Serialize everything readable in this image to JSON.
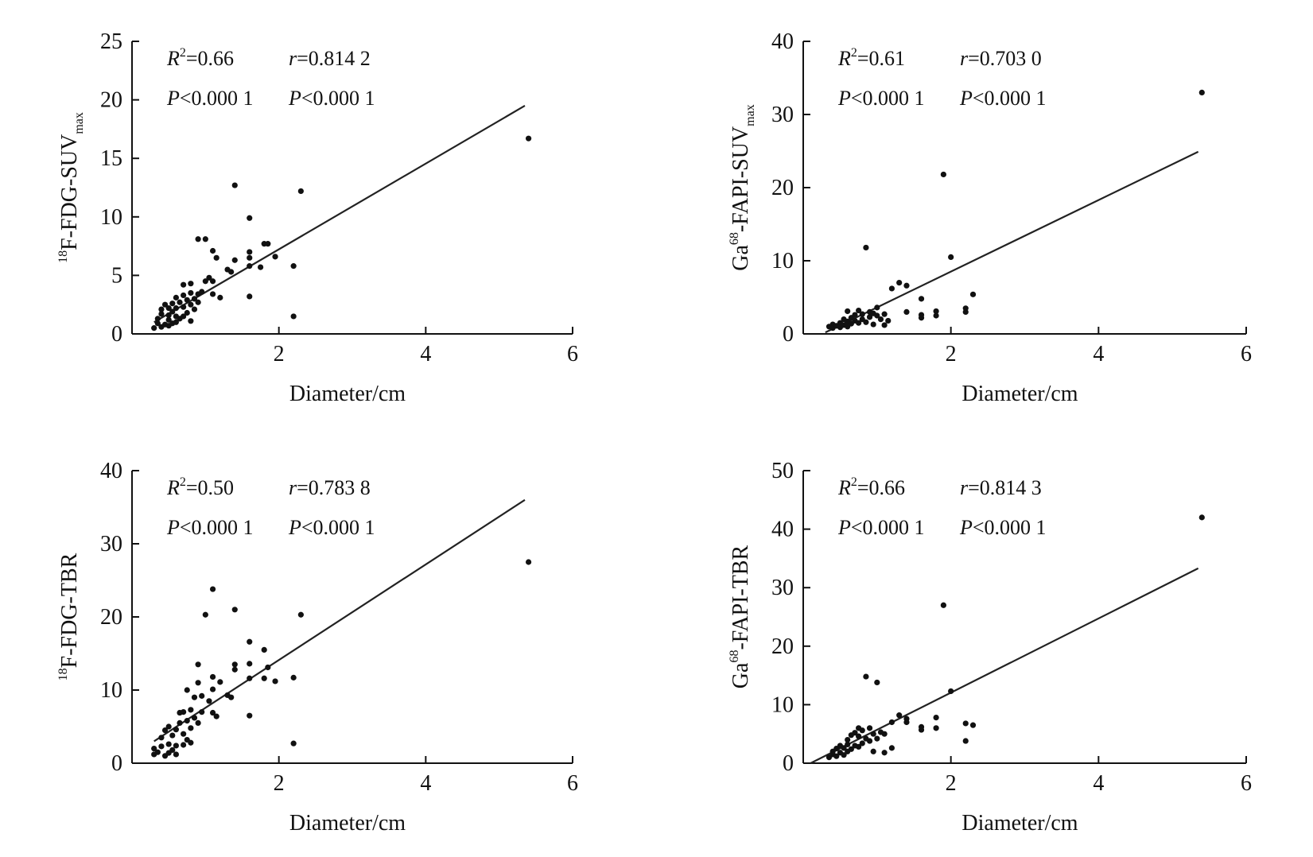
{
  "chart_data": [
    {
      "type": "scatter",
      "xlabel": "Diameter/cm",
      "ylabel": {
        "sup": "18",
        "main": "F-FDG-SUV",
        "sub": "max"
      },
      "xlim": [
        0,
        6
      ],
      "ylim": [
        0,
        25
      ],
      "xticks": [
        2,
        4,
        6
      ],
      "yticks": [
        0,
        5,
        10,
        15,
        20,
        25
      ],
      "annotations": {
        "r2": "=0.66",
        "r": "=0.814 2",
        "p1": "<0.000 1",
        "p2": "<0.000 1"
      },
      "fit_line": {
        "x": [
          0.3,
          5.35
        ],
        "y": [
          1.0,
          19.5
        ]
      },
      "points": [
        [
          0.3,
          0.5
        ],
        [
          0.35,
          0.9
        ],
        [
          0.35,
          1.3
        ],
        [
          0.4,
          0.6
        ],
        [
          0.4,
          1.7
        ],
        [
          0.4,
          2.1
        ],
        [
          0.45,
          0.8
        ],
        [
          0.45,
          2.5
        ],
        [
          0.5,
          0.7
        ],
        [
          0.5,
          1.2
        ],
        [
          0.5,
          1.6
        ],
        [
          0.5,
          2.2
        ],
        [
          0.55,
          0.9
        ],
        [
          0.55,
          1.9
        ],
        [
          0.55,
          2.6
        ],
        [
          0.6,
          1.0
        ],
        [
          0.6,
          1.5
        ],
        [
          0.6,
          2.2
        ],
        [
          0.6,
          3.1
        ],
        [
          0.65,
          1.3
        ],
        [
          0.65,
          2.7
        ],
        [
          0.7,
          1.5
        ],
        [
          0.7,
          2.3
        ],
        [
          0.7,
          3.3
        ],
        [
          0.7,
          4.2
        ],
        [
          0.75,
          1.8
        ],
        [
          0.75,
          2.9
        ],
        [
          0.8,
          1.1
        ],
        [
          0.8,
          2.5
        ],
        [
          0.8,
          3.5
        ],
        [
          0.8,
          4.3
        ],
        [
          0.85,
          2.1
        ],
        [
          0.85,
          3.0
        ],
        [
          0.9,
          2.7
        ],
        [
          0.9,
          3.4
        ],
        [
          0.9,
          8.1
        ],
        [
          0.95,
          3.6
        ],
        [
          1.0,
          4.5
        ],
        [
          1.0,
          8.1
        ],
        [
          1.05,
          4.8
        ],
        [
          1.1,
          3.4
        ],
        [
          1.1,
          4.5
        ],
        [
          1.1,
          7.1
        ],
        [
          1.15,
          6.5
        ],
        [
          1.2,
          3.1
        ],
        [
          1.3,
          5.5
        ],
        [
          1.35,
          5.3
        ],
        [
          1.4,
          6.3
        ],
        [
          1.4,
          12.7
        ],
        [
          1.6,
          3.2
        ],
        [
          1.6,
          6.5
        ],
        [
          1.6,
          7.0
        ],
        [
          1.6,
          9.9
        ],
        [
          1.6,
          5.8
        ],
        [
          1.75,
          5.7
        ],
        [
          1.8,
          7.7
        ],
        [
          1.85,
          7.7
        ],
        [
          1.95,
          6.6
        ],
        [
          2.2,
          5.8
        ],
        [
          2.2,
          1.5
        ],
        [
          2.3,
          12.2
        ],
        [
          5.4,
          16.7
        ]
      ]
    },
    {
      "type": "scatter",
      "xlabel": "Diameter/cm",
      "ylabel": {
        "pre": "Ga",
        "sup": "68",
        "main": "-FAPI-SUV",
        "sub": "max"
      },
      "xlim": [
        0,
        6
      ],
      "ylim": [
        0,
        40
      ],
      "xticks": [
        2,
        4,
        6
      ],
      "yticks": [
        0,
        10,
        20,
        30,
        40
      ],
      "annotations": {
        "r2": "=0.61",
        "r": "=0.703 0",
        "p1": "<0.000 1",
        "p2": "<0.000 1"
      },
      "fit_line": {
        "x": [
          0.3,
          5.35
        ],
        "y": [
          0.2,
          24.9
        ]
      },
      "points": [
        [
          0.35,
          1.0
        ],
        [
          0.4,
          1.3
        ],
        [
          0.4,
          0.8
        ],
        [
          0.45,
          1.1
        ],
        [
          0.5,
          1.5
        ],
        [
          0.5,
          0.9
        ],
        [
          0.55,
          1.2
        ],
        [
          0.55,
          2.0
        ],
        [
          0.6,
          1.0
        ],
        [
          0.6,
          1.7
        ],
        [
          0.6,
          3.1
        ],
        [
          0.65,
          1.4
        ],
        [
          0.65,
          2.2
        ],
        [
          0.7,
          1.8
        ],
        [
          0.7,
          2.6
        ],
        [
          0.75,
          1.5
        ],
        [
          0.75,
          3.2
        ],
        [
          0.8,
          2.0
        ],
        [
          0.8,
          2.7
        ],
        [
          0.85,
          1.6
        ],
        [
          0.85,
          11.8
        ],
        [
          0.9,
          2.3
        ],
        [
          0.9,
          3.0
        ],
        [
          0.95,
          1.3
        ],
        [
          0.95,
          2.8
        ],
        [
          1.0,
          2.5
        ],
        [
          1.0,
          3.6
        ],
        [
          1.05,
          2.0
        ],
        [
          1.1,
          1.2
        ],
        [
          1.1,
          2.7
        ],
        [
          1.15,
          1.8
        ],
        [
          1.2,
          6.2
        ],
        [
          1.3,
          7.0
        ],
        [
          1.4,
          3.0
        ],
        [
          1.4,
          6.6
        ],
        [
          1.6,
          2.2
        ],
        [
          1.6,
          2.6
        ],
        [
          1.6,
          4.8
        ],
        [
          1.8,
          2.5
        ],
        [
          1.8,
          3.1
        ],
        [
          1.9,
          21.8
        ],
        [
          2.0,
          10.5
        ],
        [
          2.2,
          3.0
        ],
        [
          2.2,
          3.5
        ],
        [
          2.3,
          5.4
        ],
        [
          5.4,
          33.0
        ]
      ]
    },
    {
      "type": "scatter",
      "xlabel": "Diameter/cm",
      "ylabel": {
        "sup": "18",
        "main": "F-FDG-TBR"
      },
      "xlim": [
        0,
        6
      ],
      "ylim": [
        0,
        40
      ],
      "xticks": [
        2,
        4,
        6
      ],
      "yticks": [
        0,
        10,
        20,
        30,
        40
      ],
      "annotations": {
        "r2": "=0.50",
        "r": "=0.783 8",
        "p1": "<0.000 1",
        "p2": "<0.000 1"
      },
      "fit_line": {
        "x": [
          0.3,
          5.35
        ],
        "y": [
          3.0,
          36.0
        ]
      },
      "points": [
        [
          0.3,
          1.2
        ],
        [
          0.3,
          2.0
        ],
        [
          0.35,
          1.5
        ],
        [
          0.4,
          2.3
        ],
        [
          0.4,
          3.5
        ],
        [
          0.45,
          1.0
        ],
        [
          0.45,
          4.5
        ],
        [
          0.5,
          1.4
        ],
        [
          0.5,
          2.6
        ],
        [
          0.5,
          5.0
        ],
        [
          0.55,
          1.8
        ],
        [
          0.55,
          3.8
        ],
        [
          0.6,
          1.2
        ],
        [
          0.6,
          2.4
        ],
        [
          0.6,
          4.6
        ],
        [
          0.65,
          5.5
        ],
        [
          0.65,
          6.9
        ],
        [
          0.7,
          2.5
        ],
        [
          0.7,
          4.0
        ],
        [
          0.7,
          7.0
        ],
        [
          0.75,
          3.2
        ],
        [
          0.75,
          5.8
        ],
        [
          0.75,
          10.0
        ],
        [
          0.8,
          2.8
        ],
        [
          0.8,
          4.8
        ],
        [
          0.8,
          7.3
        ],
        [
          0.85,
          6.2
        ],
        [
          0.85,
          9.0
        ],
        [
          0.9,
          5.5
        ],
        [
          0.9,
          13.5
        ],
        [
          0.9,
          11.0
        ],
        [
          0.95,
          7.0
        ],
        [
          0.95,
          9.2
        ],
        [
          1.0,
          20.3
        ],
        [
          1.05,
          8.5
        ],
        [
          1.1,
          23.8
        ],
        [
          1.1,
          10.1
        ],
        [
          1.1,
          6.9
        ],
        [
          1.1,
          11.8
        ],
        [
          1.15,
          6.4
        ],
        [
          1.2,
          11.1
        ],
        [
          1.3,
          9.3
        ],
        [
          1.35,
          9.0
        ],
        [
          1.4,
          12.8
        ],
        [
          1.4,
          13.5
        ],
        [
          1.4,
          21.0
        ],
        [
          1.6,
          6.5
        ],
        [
          1.6,
          11.6
        ],
        [
          1.6,
          13.6
        ],
        [
          1.6,
          16.6
        ],
        [
          1.8,
          11.6
        ],
        [
          1.8,
          15.5
        ],
        [
          1.85,
          13.1
        ],
        [
          1.95,
          11.2
        ],
        [
          2.2,
          2.7
        ],
        [
          2.2,
          11.7
        ],
        [
          2.3,
          20.3
        ],
        [
          5.4,
          27.5
        ]
      ]
    },
    {
      "type": "scatter",
      "xlabel": "Diameter/cm",
      "ylabel": {
        "pre": "Ga",
        "sup": "68",
        "main": "-FAPI-TBR"
      },
      "xlim": [
        0,
        6
      ],
      "ylim": [
        0,
        50
      ],
      "xticks": [
        2,
        4,
        6
      ],
      "yticks": [
        0,
        10,
        20,
        30,
        40,
        50
      ],
      "annotations": {
        "r2": "=0.66",
        "r": "=0.814 3",
        "p1": "<0.000 1",
        "p2": "<0.000 1"
      },
      "fit_line": {
        "x": [
          0.1,
          5.35
        ],
        "y": [
          0,
          33.3
        ]
      },
      "points": [
        [
          0.35,
          1.0
        ],
        [
          0.4,
          2.0
        ],
        [
          0.4,
          1.5
        ],
        [
          0.45,
          2.5
        ],
        [
          0.45,
          1.2
        ],
        [
          0.5,
          1.8
        ],
        [
          0.5,
          3.0
        ],
        [
          0.55,
          1.4
        ],
        [
          0.55,
          2.6
        ],
        [
          0.6,
          2.0
        ],
        [
          0.6,
          3.2
        ],
        [
          0.6,
          4.0
        ],
        [
          0.65,
          2.4
        ],
        [
          0.65,
          4.8
        ],
        [
          0.7,
          3.0
        ],
        [
          0.7,
          5.2
        ],
        [
          0.75,
          2.8
        ],
        [
          0.75,
          4.6
        ],
        [
          0.75,
          6.0
        ],
        [
          0.8,
          3.4
        ],
        [
          0.8,
          5.6
        ],
        [
          0.85,
          4.2
        ],
        [
          0.85,
          14.8
        ],
        [
          0.9,
          3.8
        ],
        [
          0.9,
          6.0
        ],
        [
          0.95,
          2.0
        ],
        [
          0.95,
          5.0
        ],
        [
          1.0,
          4.2
        ],
        [
          1.0,
          13.8
        ],
        [
          1.05,
          5.3
        ],
        [
          1.1,
          1.8
        ],
        [
          1.1,
          5.0
        ],
        [
          1.2,
          2.6
        ],
        [
          1.2,
          7.0
        ],
        [
          1.3,
          8.2
        ],
        [
          1.4,
          7.0
        ],
        [
          1.4,
          7.6
        ],
        [
          1.6,
          5.7
        ],
        [
          1.6,
          6.2
        ],
        [
          1.8,
          6.0
        ],
        [
          1.8,
          7.8
        ],
        [
          1.9,
          27.0
        ],
        [
          2.0,
          12.3
        ],
        [
          2.2,
          3.8
        ],
        [
          2.2,
          6.8
        ],
        [
          2.3,
          6.5
        ],
        [
          5.4,
          42.0
        ]
      ]
    }
  ]
}
